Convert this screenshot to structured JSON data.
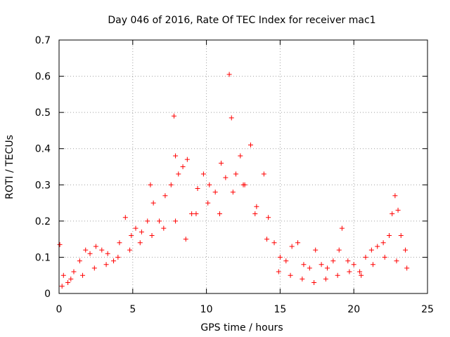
{
  "chart_data": {
    "type": "scatter",
    "title": "Day 046 of 2016, Rate Of TEC Index for receiver mac1",
    "xlabel": "GPS time / hours",
    "ylabel": "ROTI / TECUs",
    "xlim": [
      0,
      25
    ],
    "ylim": [
      0,
      0.7
    ],
    "xticks": [
      "0",
      "5",
      "10",
      "15",
      "20",
      "25"
    ],
    "yticks": [
      "0",
      "0.1",
      "0.2",
      "0.3",
      "0.4",
      "0.5",
      "0.6",
      "0.7"
    ],
    "grid": true,
    "marker": "+",
    "color": "#ff0000",
    "series": [
      {
        "x": [
          0.05,
          0.3,
          0.6,
          1.0,
          1.4,
          1.8,
          2.1,
          2.5,
          2.9,
          3.3,
          3.7,
          4.1,
          4.5,
          4.9,
          5.2,
          5.6,
          6.0,
          6.2,
          6.4,
          6.8,
          7.2,
          7.6,
          7.8,
          7.9,
          8.1,
          8.4,
          8.7,
          9.0,
          9.4,
          9.8,
          10.2,
          10.6,
          11.0,
          11.3,
          11.55,
          11.7,
          12.0,
          12.3,
          12.6,
          13.0,
          13.4,
          13.9,
          14.2,
          14.6,
          15.0,
          15.4,
          15.8,
          16.2,
          16.6,
          17.0,
          17.4,
          17.8,
          18.2,
          18.6,
          19.0,
          19.2,
          19.6,
          20.0,
          20.4,
          20.8,
          21.2,
          21.6,
          22.0,
          22.4,
          22.6,
          22.8,
          23.0,
          23.2,
          23.5,
          0.2,
          0.8,
          1.6,
          2.4,
          3.2,
          4.0,
          4.8,
          5.5,
          6.3,
          7.1,
          7.9,
          8.6,
          9.3,
          10.1,
          10.9,
          11.8,
          12.5,
          13.3,
          14.1,
          14.9,
          15.7,
          16.5,
          17.3,
          18.1,
          18.9,
          19.7,
          20.5,
          21.3,
          22.1,
          22.9,
          23.6
        ],
        "y": [
          0.135,
          0.05,
          0.03,
          0.06,
          0.09,
          0.12,
          0.11,
          0.13,
          0.12,
          0.11,
          0.09,
          0.14,
          0.21,
          0.16,
          0.18,
          0.17,
          0.2,
          0.3,
          0.25,
          0.2,
          0.27,
          0.3,
          0.49,
          0.38,
          0.33,
          0.35,
          0.37,
          0.22,
          0.29,
          0.33,
          0.3,
          0.28,
          0.36,
          0.32,
          0.605,
          0.485,
          0.33,
          0.38,
          0.3,
          0.41,
          0.24,
          0.33,
          0.21,
          0.14,
          0.1,
          0.09,
          0.13,
          0.14,
          0.08,
          0.07,
          0.12,
          0.08,
          0.07,
          0.09,
          0.12,
          0.18,
          0.09,
          0.08,
          0.06,
          0.1,
          0.12,
          0.13,
          0.14,
          0.16,
          0.22,
          0.27,
          0.23,
          0.16,
          0.12,
          0.02,
          0.04,
          0.05,
          0.07,
          0.08,
          0.1,
          0.12,
          0.14,
          0.16,
          0.18,
          0.2,
          0.15,
          0.22,
          0.25,
          0.22,
          0.28,
          0.3,
          0.22,
          0.15,
          0.06,
          0.05,
          0.04,
          0.03,
          0.04,
          0.05,
          0.06,
          0.05,
          0.08,
          0.1,
          0.09,
          0.07
        ]
      }
    ]
  }
}
